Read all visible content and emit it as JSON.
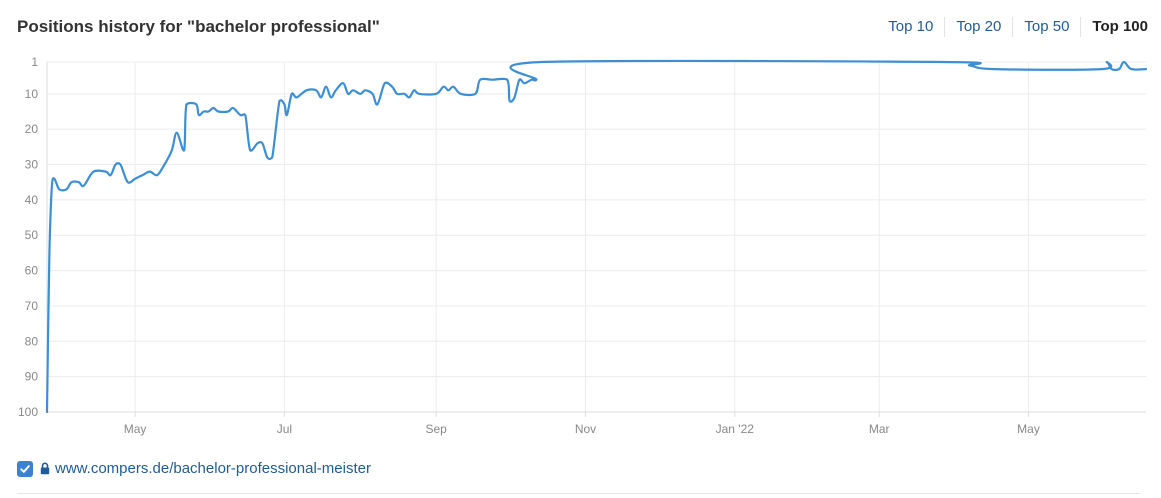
{
  "header": {
    "title": "Positions history for \"bachelor professional\"",
    "range_tabs": [
      {
        "label": "Top 10",
        "active": false
      },
      {
        "label": "Top 20",
        "active": false
      },
      {
        "label": "Top 50",
        "active": false
      },
      {
        "label": "Top 100",
        "active": true
      }
    ]
  },
  "chart_data": {
    "type": "line",
    "title": "Positions history for \"bachelor professional\"",
    "xlabel": "",
    "ylabel": "",
    "y_inverted": true,
    "ylim": [
      1,
      100
    ],
    "y_ticks": [
      1,
      10,
      20,
      30,
      40,
      50,
      60,
      70,
      80,
      90,
      100
    ],
    "x_range": [
      "2021-03-26",
      "2022-06-18"
    ],
    "x_ticks": [
      {
        "label": "May",
        "date": "2021-05-01"
      },
      {
        "label": "Jul",
        "date": "2021-07-01"
      },
      {
        "label": "Sep",
        "date": "2021-09-01"
      },
      {
        "label": "Nov",
        "date": "2021-11-01"
      },
      {
        "label": "Jan '22",
        "date": "2022-01-01"
      },
      {
        "label": "Mar",
        "date": "2022-03-01"
      },
      {
        "label": "May",
        "date": "2022-05-01"
      }
    ],
    "grid": true,
    "line_color": "#3d8fd4",
    "series": [
      {
        "points": [
          [
            "2021-03-26",
            100
          ],
          [
            "2021-03-27",
            55
          ],
          [
            "2021-03-28",
            36
          ],
          [
            "2021-03-29",
            34
          ],
          [
            "2021-03-31",
            37
          ],
          [
            "2021-04-03",
            37
          ],
          [
            "2021-04-05",
            35
          ],
          [
            "2021-04-08",
            35
          ],
          [
            "2021-04-10",
            36
          ],
          [
            "2021-04-14",
            32
          ],
          [
            "2021-04-19",
            32
          ],
          [
            "2021-04-21",
            33
          ],
          [
            "2021-04-23",
            30
          ],
          [
            "2021-04-25",
            30
          ],
          [
            "2021-04-28",
            35
          ],
          [
            "2021-05-01",
            34
          ],
          [
            "2021-05-04",
            33
          ],
          [
            "2021-05-07",
            32
          ],
          [
            "2021-05-10",
            33
          ],
          [
            "2021-05-13",
            30
          ],
          [
            "2021-05-16",
            26
          ],
          [
            "2021-05-18",
            21
          ],
          [
            "2021-05-21",
            26
          ],
          [
            "2021-05-22",
            13
          ],
          [
            "2021-05-26",
            13
          ],
          [
            "2021-05-27",
            16
          ],
          [
            "2021-05-29",
            15
          ],
          [
            "2021-05-31",
            15
          ],
          [
            "2021-06-02",
            14
          ],
          [
            "2021-06-04",
            15
          ],
          [
            "2021-06-08",
            15
          ],
          [
            "2021-06-10",
            14
          ],
          [
            "2021-06-13",
            16
          ],
          [
            "2021-06-15",
            16
          ],
          [
            "2021-06-17",
            26
          ],
          [
            "2021-06-20",
            24
          ],
          [
            "2021-06-22",
            24
          ],
          [
            "2021-06-24",
            28
          ],
          [
            "2021-06-26",
            28
          ],
          [
            "2021-06-29",
            12
          ],
          [
            "2021-07-01",
            13
          ],
          [
            "2021-07-02",
            16
          ],
          [
            "2021-07-04",
            10
          ],
          [
            "2021-07-06",
            11
          ],
          [
            "2021-07-10",
            9
          ],
          [
            "2021-07-14",
            9
          ],
          [
            "2021-07-16",
            11
          ],
          [
            "2021-07-18",
            8
          ],
          [
            "2021-07-20",
            11
          ],
          [
            "2021-07-22",
            9
          ],
          [
            "2021-07-25",
            7
          ],
          [
            "2021-07-27",
            10
          ],
          [
            "2021-07-29",
            9
          ],
          [
            "2021-08-01",
            10
          ],
          [
            "2021-08-03",
            9
          ],
          [
            "2021-08-06",
            10
          ],
          [
            "2021-08-08",
            13
          ],
          [
            "2021-08-11",
            7
          ],
          [
            "2021-08-14",
            8
          ],
          [
            "2021-08-16",
            10
          ],
          [
            "2021-08-19",
            10
          ],
          [
            "2021-08-21",
            11
          ],
          [
            "2021-08-23",
            9
          ],
          [
            "2021-08-25",
            10
          ],
          [
            "2021-09-01",
            10
          ],
          [
            "2021-09-04",
            8
          ],
          [
            "2021-09-06",
            9
          ],
          [
            "2021-09-08",
            8
          ],
          [
            "2021-09-11",
            10
          ],
          [
            "2021-09-17",
            10
          ],
          [
            "2021-09-19",
            6
          ],
          [
            "2021-09-24",
            6
          ],
          [
            "2021-09-30",
            6
          ],
          [
            "2021-10-01",
            12
          ],
          [
            "2021-10-03",
            11
          ],
          [
            "2021-10-05",
            6
          ],
          [
            "2021-10-07",
            7
          ],
          [
            "2021-10-10",
            6
          ],
          [
            "2021-10-12",
            6
          ],
          [
            "2021-10-14",
            1
          ],
          [
            "2022-03-27",
            1
          ],
          [
            "2022-04-07",
            2
          ],
          [
            "2022-04-17",
            3
          ],
          [
            "2022-05-31",
            3
          ],
          [
            "2022-06-02",
            1
          ],
          [
            "2022-06-04",
            3
          ],
          [
            "2022-06-07",
            3
          ],
          [
            "2022-06-09",
            1
          ],
          [
            "2022-06-12",
            3
          ],
          [
            "2022-06-18",
            3
          ]
        ]
      }
    ]
  },
  "legend": {
    "checked": true,
    "url": "www.compers.de/bachelor-professional-meister"
  }
}
